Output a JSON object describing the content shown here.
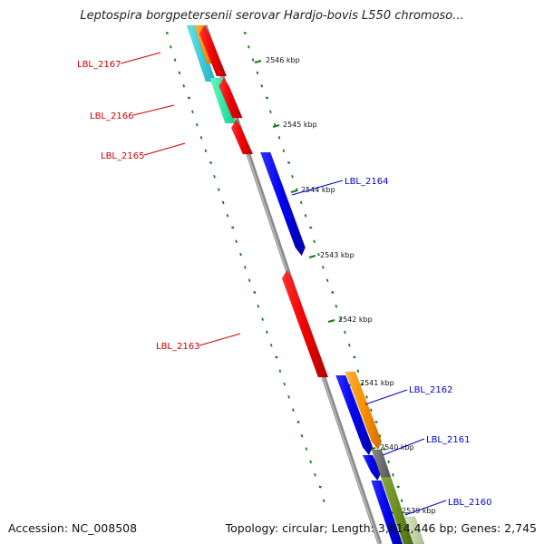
{
  "title": "Leptospira borgpetersenii serovar Hardjo-bovis L550 chromoso...",
  "footer": {
    "accession": "Accession: NC_008508",
    "topology": "Topology: circular; Length: 3,614,446 bp; Genes: 2,745"
  },
  "colors": {
    "reverse_label": "#cc0000",
    "forward_label": "#0000cc",
    "ruler_ticks": "#1a7a1a",
    "backbone": "#888888"
  },
  "ruler_ticks": [
    "2546 kbp",
    "2545 kbp",
    "2544 kbp",
    "2543 kbp",
    "2542 kbp",
    "2541 kbp",
    "2540 kbp",
    "2539 kbp"
  ],
  "gene_labels": [
    {
      "name": "LBL_2167",
      "strand": "reverse"
    },
    {
      "name": "LBL_2166",
      "strand": "reverse"
    },
    {
      "name": "LBL_2165",
      "strand": "reverse"
    },
    {
      "name": "LBL_2164",
      "strand": "forward"
    },
    {
      "name": "LBL_2163",
      "strand": "reverse"
    },
    {
      "name": "LBL_2162",
      "strand": "forward"
    },
    {
      "name": "LBL_2161",
      "strand": "forward"
    },
    {
      "name": "LBL_2160",
      "strand": "forward"
    }
  ]
}
